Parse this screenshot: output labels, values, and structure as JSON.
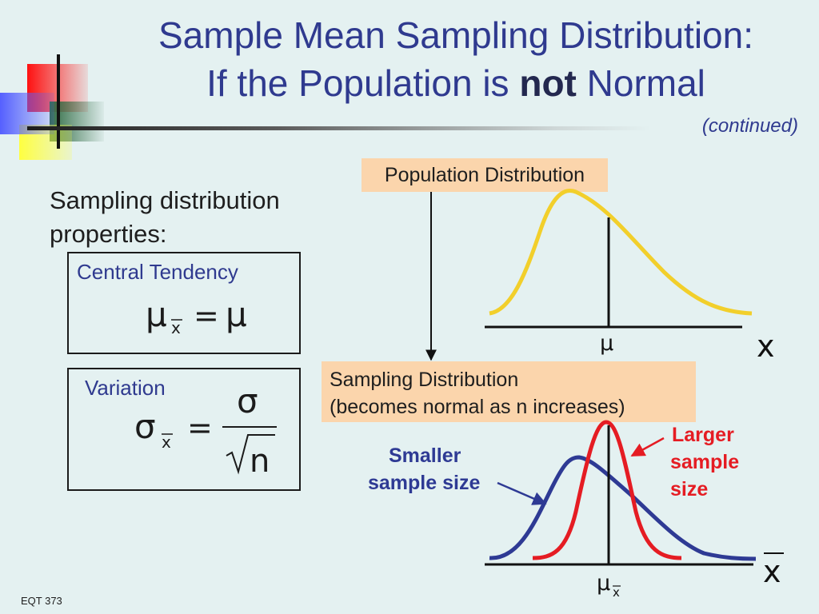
{
  "title": {
    "line1": "Sample Mean Sampling Distribution:",
    "line2_prefix": "If the Population is ",
    "line2_bold": "not",
    "line2_suffix": " Normal"
  },
  "continued": "(continued)",
  "properties_label_1": "Sampling distribution",
  "properties_label_2": "properties:",
  "central_tendency": {
    "label": "Central Tendency",
    "formula_lhs": "μ",
    "formula_sub": "x",
    "formula_eq": "=",
    "formula_rhs": "μ"
  },
  "variation": {
    "label": "Variation",
    "formula_lhs": "σ",
    "formula_sub": "x",
    "formula_eq": "=",
    "numerator": "σ",
    "denominator": "n"
  },
  "population_distribution": {
    "label": "Population Distribution",
    "mean_label": "μ",
    "axis_label": "x",
    "curve_color": "#f2cf2b"
  },
  "sampling_distribution": {
    "label_line1": "Sampling Distribution",
    "label_line2": "(becomes normal as n increases)",
    "mean_label": "μ",
    "mean_sub": "x",
    "axis_label": "x",
    "smaller_label_1": "Smaller",
    "smaller_label_2": "sample size",
    "smaller_color": "#2e3a94",
    "larger_label_1": "Larger",
    "larger_label_2": "sample",
    "larger_label_3": "size",
    "larger_color": "#e51c23"
  },
  "footer": "EQT 373",
  "colors": {
    "background": "#e4f1f1",
    "title": "#2f3a8f",
    "callout": "#fbd5ac"
  }
}
